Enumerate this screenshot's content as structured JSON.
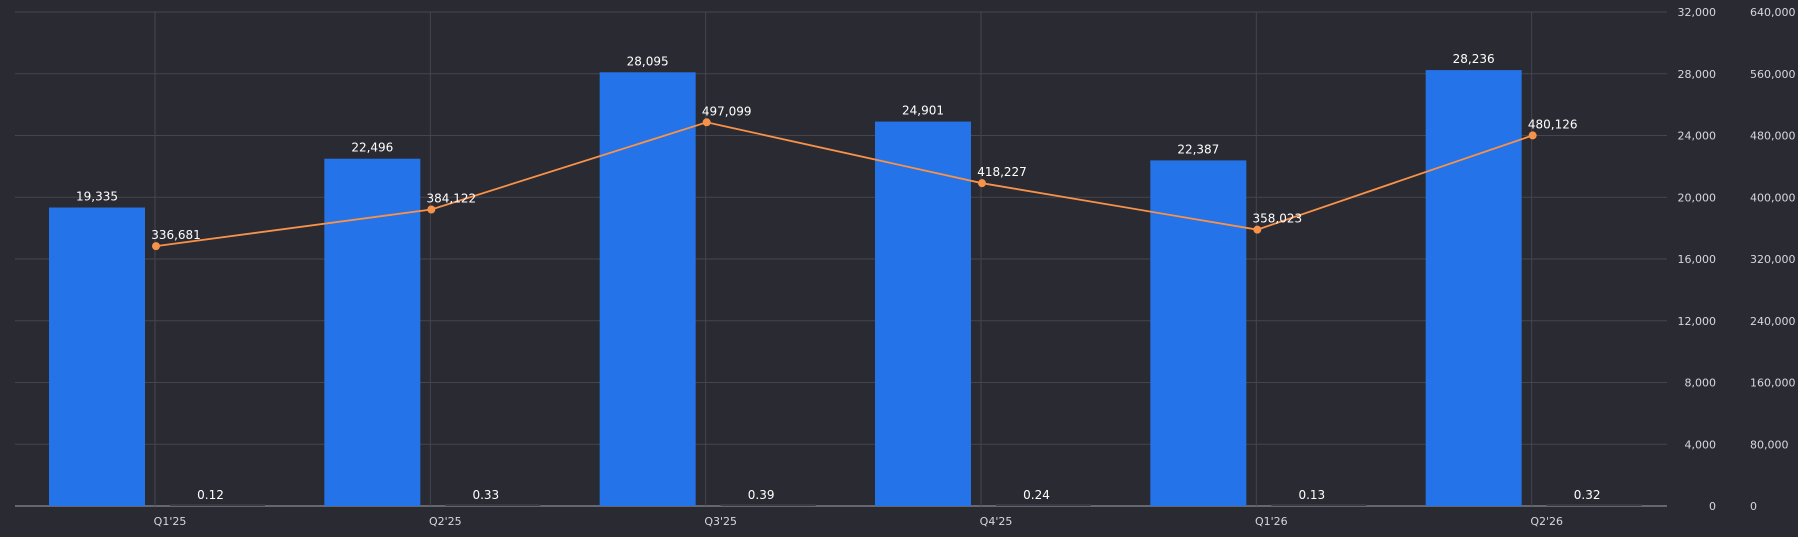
{
  "chart_data": {
    "type": "bar",
    "categories": [
      "Q1'25",
      "Q2'25",
      "Q3'25",
      "Q4'25",
      "Q1'26",
      "Q2'26"
    ],
    "series": [
      {
        "kind": "bar",
        "axis": "y_left",
        "color": "#2573e8",
        "values": [
          19335,
          22496,
          28095,
          24901,
          22387,
          28236
        ],
        "value_labels": [
          "19,335",
          "22,496",
          "28,095",
          "24,901",
          "22,387",
          "28,236"
        ]
      },
      {
        "kind": "bar",
        "axis": "y_left",
        "color": "#3a3a44",
        "values": [
          0.12,
          0.33,
          0.39,
          0.24,
          0.13,
          0.32
        ],
        "value_labels": [
          "0.12",
          "0.33",
          "0.39",
          "0.24",
          "0.13",
          "0.32"
        ]
      },
      {
        "kind": "line",
        "axis": "y_right",
        "color": "#f7924a",
        "values": [
          336681,
          384122,
          497099,
          418227,
          358023,
          480126
        ],
        "value_labels": [
          "336,681",
          "384,122",
          "497,099",
          "418,227",
          "358,023",
          "480,126"
        ]
      }
    ],
    "y_left": {
      "min": 0,
      "max": 32000,
      "ticks": [
        0,
        4000,
        8000,
        12000,
        16000,
        20000,
        24000,
        28000,
        32000
      ],
      "tick_labels": [
        "0",
        "4,000",
        "8,000",
        "12,000",
        "16,000",
        "20,000",
        "24,000",
        "28,000",
        "32,000"
      ]
    },
    "y_right": {
      "min": 0,
      "max": 640000,
      "ticks": [
        0,
        80000,
        160000,
        240000,
        320000,
        400000,
        480000,
        560000,
        640000
      ],
      "tick_labels": [
        "0",
        "80,000",
        "160,000",
        "240,000",
        "320,000",
        "400,000",
        "480,000",
        "560,000",
        "640,000"
      ]
    },
    "grid": true,
    "legend": false,
    "colors": {
      "background": "#2a2a32",
      "grid": "#45454f",
      "bar": "#2573e8",
      "line": "#f7924a",
      "text": "#ffffff",
      "tick": "#d7d7de"
    }
  }
}
